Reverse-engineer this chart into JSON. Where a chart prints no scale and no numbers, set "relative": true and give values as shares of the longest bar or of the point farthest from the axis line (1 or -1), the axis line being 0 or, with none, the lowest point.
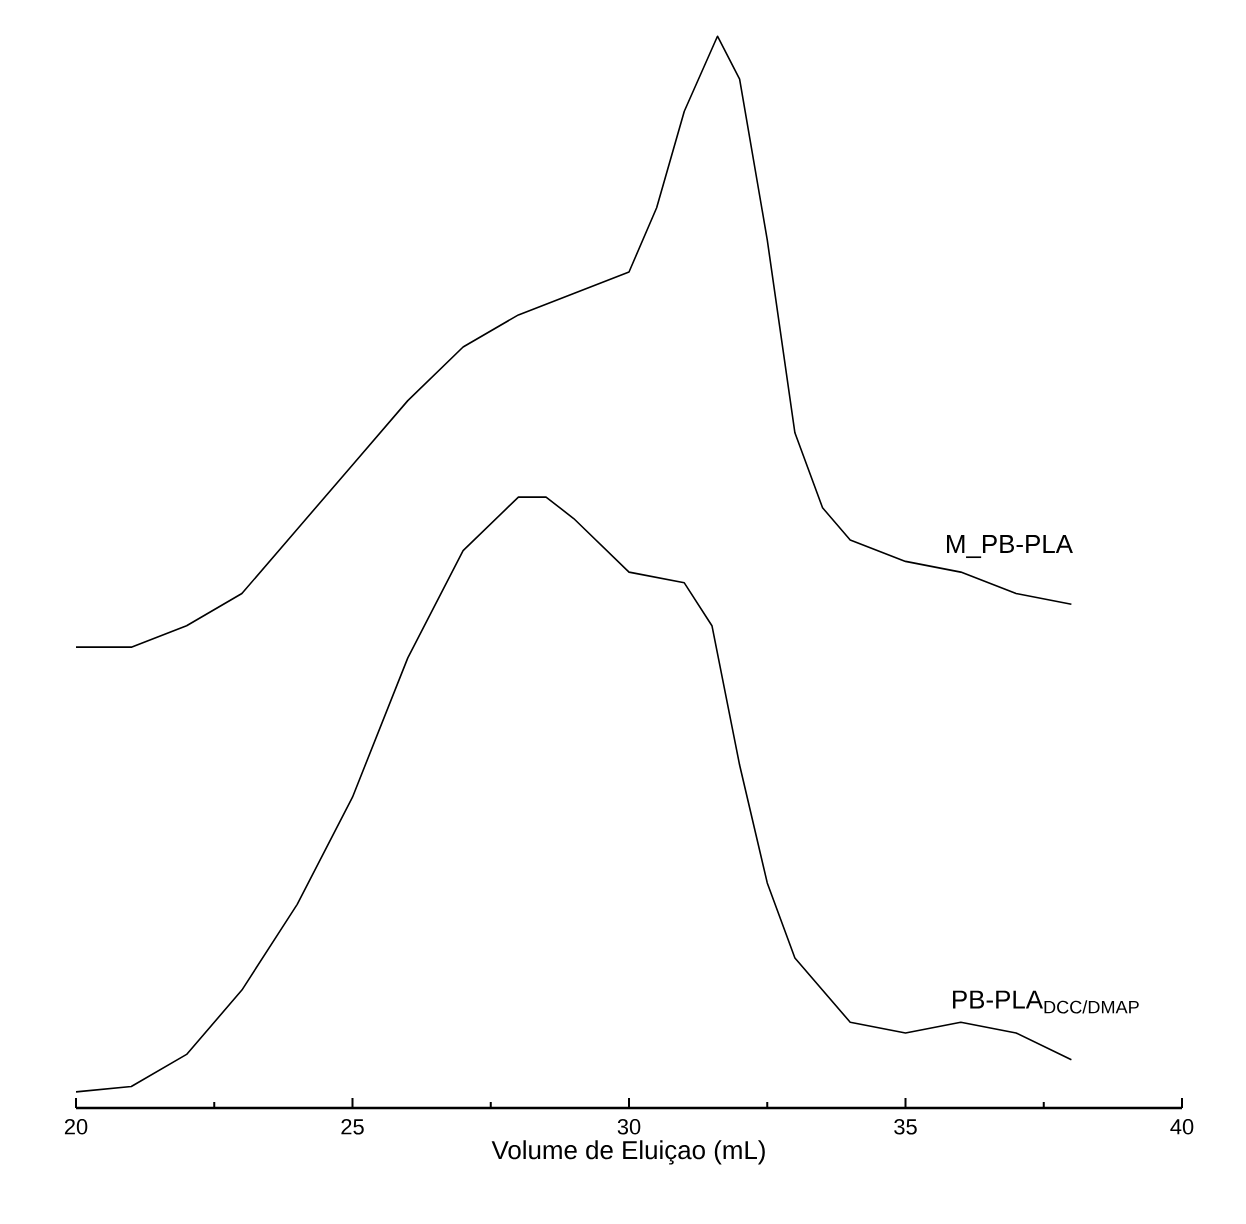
{
  "chart_data": {
    "type": "line",
    "relative": true,
    "xlabel": "Volume de Eluiçao (mL)",
    "xlim": [
      20,
      40
    ],
    "xticks": [
      20,
      25,
      30,
      35,
      40
    ],
    "series": [
      {
        "name": "M_PB-PLA",
        "color": "#000000",
        "x": [
          20,
          21,
          22,
          23,
          24,
          25,
          26,
          27,
          28,
          29,
          30,
          30.5,
          31,
          31.6,
          32,
          32.5,
          33,
          33.5,
          34,
          35,
          36,
          37,
          38
        ],
        "values": [
          0.43,
          0.43,
          0.45,
          0.48,
          0.54,
          0.6,
          0.66,
          0.71,
          0.74,
          0.76,
          0.78,
          0.84,
          0.93,
          1,
          0.96,
          0.81,
          0.63,
          0.56,
          0.53,
          0.51,
          0.5,
          0.48,
          0.47
        ]
      },
      {
        "name": "PB-PLA$_{DCC/DMAP}$",
        "color": "#000000",
        "x": [
          20,
          21,
          22,
          23,
          24,
          25,
          26,
          27,
          28,
          28.5,
          29,
          30,
          31,
          31.5,
          32,
          32.5,
          33,
          34,
          35,
          36,
          37,
          38
        ],
        "values": [
          0.015,
          0.02,
          0.05,
          0.11,
          0.19,
          0.29,
          0.42,
          0.52,
          0.57,
          0.57,
          0.55,
          0.5,
          0.49,
          0.45,
          0.32,
          0.21,
          0.14,
          0.08,
          0.07,
          0.08,
          0.07,
          0.045
        ]
      }
    ]
  }
}
